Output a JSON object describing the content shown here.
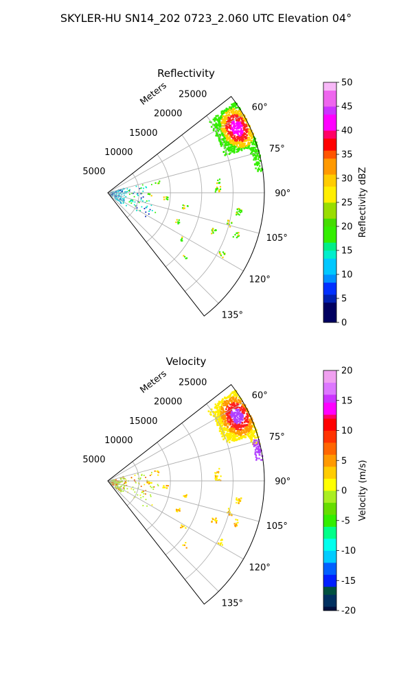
{
  "figure": {
    "suptitle": "SKYLER-HU  SN14_202  0723_2.060 UTC Elevation 04°"
  },
  "chart_data": [
    {
      "type": "heatmap",
      "projection": "polar-sector",
      "title": "Reflectivity",
      "range_label": "Meters",
      "range_ticks": [
        5000,
        10000,
        15000,
        20000,
        25000
      ],
      "range_max": 25000,
      "azimuth_range_deg": [
        52,
        142
      ],
      "azimuth_ticks": [
        "60°",
        "75°",
        "90°",
        "105°",
        "120°",
        "135°"
      ],
      "grid": true,
      "colorbar": {
        "label": "Reflectivity dBZ",
        "vmin": 0,
        "vmax": 50,
        "ticks": [
          0,
          5,
          10,
          15,
          20,
          25,
          30,
          35,
          40,
          45,
          50
        ]
      },
      "colors": {
        "core": "#ff00ff",
        "inner": "#ff2020",
        "mid": "#ffcc00",
        "outer": "#33ee00",
        "weak": "#00e5cc",
        "near": "#40c8d8",
        "dark": "#0020b0"
      }
    },
    {
      "type": "heatmap",
      "projection": "polar-sector",
      "title": "Velocity",
      "range_label": "Meters",
      "range_ticks": [
        5000,
        10000,
        15000,
        20000,
        25000
      ],
      "range_max": 25000,
      "azimuth_range_deg": [
        52,
        142
      ],
      "azimuth_ticks": [
        "60°",
        "75°",
        "90°",
        "105°",
        "120°",
        "135°"
      ],
      "grid": true,
      "colorbar": {
        "label": "Velocity (m/s)",
        "vmin": -20,
        "vmax": 20,
        "ticks": [
          -20,
          -15,
          -10,
          -5,
          0,
          5,
          10,
          15,
          20
        ]
      },
      "colors": {
        "core": "#b040ff",
        "inner": "#ff2020",
        "mid": "#ff9900",
        "outer": "#ffee00",
        "weak": "#aaee22",
        "near": "#b0e040",
        "dark": "#ee6600"
      }
    }
  ]
}
